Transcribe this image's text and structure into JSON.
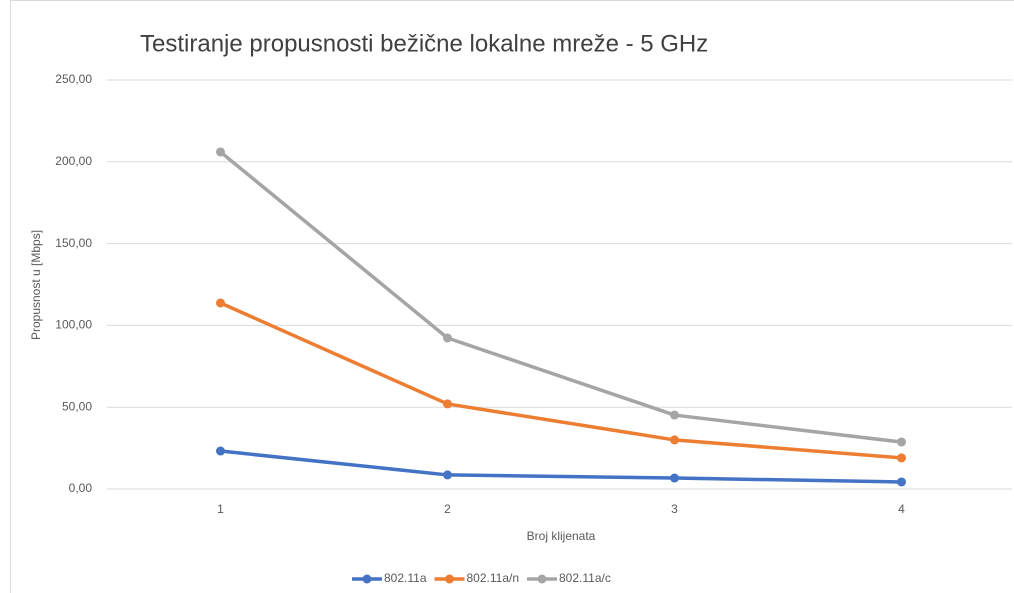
{
  "chart_data": {
    "type": "line",
    "title": "Testiranje propusnosti bežične lokalne mreže - 5 GHz",
    "x_label": "Broj klijenata",
    "y_label": "Propusnost u [Mbps]",
    "categories": [
      "1",
      "2",
      "3",
      "4"
    ],
    "series": [
      {
        "name": "802.11a",
        "color": "#4472c4",
        "values": [
          23.2,
          8.6,
          6.7,
          4.3
        ]
      },
      {
        "name": "802.11a/n",
        "color": "#ed7d31",
        "values": [
          113.7,
          52,
          30,
          19
        ]
      },
      {
        "name": "802.11a/c",
        "color": "#a5a5a5",
        "values": [
          206,
          92.3,
          45.2,
          28.7
        ]
      }
    ],
    "ylim": [
      0,
      250
    ],
    "yticks": [
      {
        "value": 0,
        "label": "0,00"
      },
      {
        "value": 50,
        "label": "50,00"
      },
      {
        "value": 100,
        "label": "100,00"
      },
      {
        "value": 150,
        "label": "150,00"
      },
      {
        "value": 200,
        "label": "200,00"
      },
      {
        "value": 250,
        "label": "250,00"
      }
    ],
    "grid": true,
    "legend": "bottom"
  }
}
